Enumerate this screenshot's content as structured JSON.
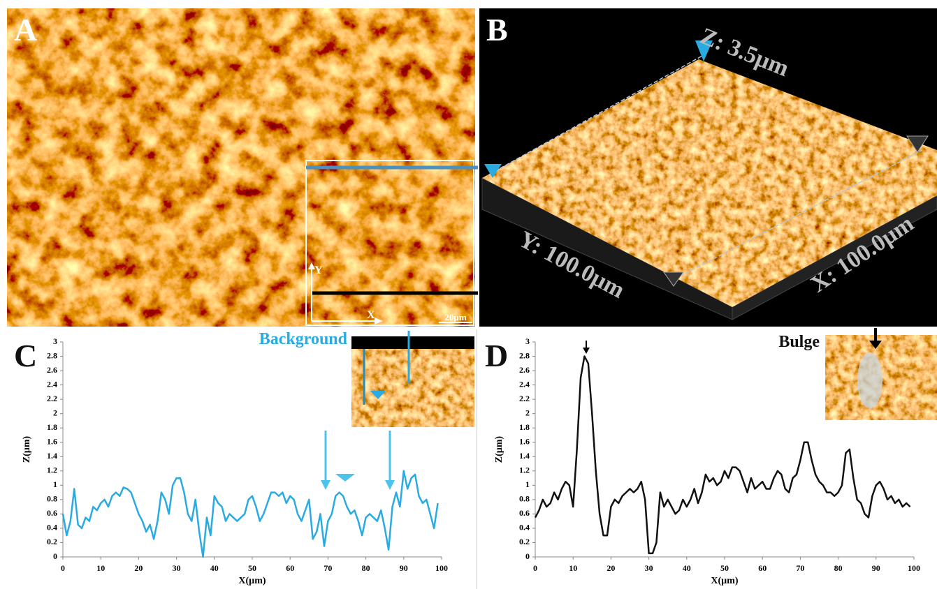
{
  "panels": {
    "a": {
      "label": "A",
      "axis_x": "X",
      "axis_y": "Y",
      "scale_bar": "20µm"
    },
    "b": {
      "label": "B",
      "z_label": "Z: 3.5µm",
      "y_label": "Y: 100.0µm",
      "x_label": "X: 100.0µm"
    }
  },
  "chart_data": [
    {
      "type": "line",
      "panel_label": "C",
      "annotation": "Background",
      "x_label": "X(µm)",
      "y_label": "Z(µm)",
      "color": "#29abe2",
      "x": [
        0,
        1,
        2,
        3,
        4,
        5,
        6,
        7,
        8,
        9,
        10,
        11,
        12,
        13,
        14,
        15,
        16,
        17,
        18,
        19,
        20,
        21,
        22,
        23,
        24,
        25,
        26,
        27,
        28,
        29,
        30,
        31,
        32,
        33,
        34,
        35,
        36,
        37,
        38,
        39,
        40,
        41,
        42,
        43,
        44,
        45,
        46,
        47,
        48,
        49,
        50,
        51,
        52,
        53,
        54,
        55,
        56,
        57,
        58,
        59,
        60,
        61,
        62,
        63,
        64,
        65,
        66,
        67,
        68,
        69,
        70,
        71,
        72,
        73,
        74,
        75,
        76,
        77,
        78,
        79,
        80,
        81,
        82,
        83,
        84,
        85,
        86,
        87,
        88,
        89,
        90,
        91,
        92,
        93,
        94,
        95,
        96,
        97,
        98,
        99
      ],
      "values": [
        0.6,
        0.3,
        0.5,
        0.95,
        0.45,
        0.4,
        0.55,
        0.5,
        0.7,
        0.65,
        0.75,
        0.8,
        0.7,
        0.85,
        0.9,
        0.85,
        0.97,
        0.95,
        0.9,
        0.75,
        0.6,
        0.5,
        0.35,
        0.45,
        0.25,
        0.5,
        0.9,
        0.8,
        0.6,
        1.0,
        1.1,
        1.1,
        0.9,
        0.6,
        0.5,
        0.8,
        0.35,
        0.0,
        0.55,
        0.3,
        0.85,
        0.75,
        0.7,
        0.5,
        0.6,
        0.55,
        0.5,
        0.55,
        0.6,
        0.8,
        0.85,
        0.7,
        0.5,
        0.6,
        0.75,
        0.9,
        0.9,
        0.85,
        0.9,
        0.75,
        0.85,
        0.8,
        0.6,
        0.5,
        0.65,
        0.8,
        0.25,
        0.35,
        0.6,
        0.15,
        0.5,
        0.6,
        0.85,
        0.9,
        0.85,
        0.7,
        0.6,
        0.65,
        0.5,
        0.3,
        0.55,
        0.6,
        0.55,
        0.5,
        0.65,
        0.4,
        0.1,
        0.7,
        0.9,
        0.7,
        1.2,
        0.95,
        1.1,
        1.15,
        0.85,
        0.75,
        0.8,
        0.6,
        0.4,
        0.75
      ],
      "xlim": [
        0,
        100
      ],
      "xticks": [
        0,
        10,
        20,
        30,
        40,
        50,
        60,
        70,
        80,
        90,
        100
      ],
      "ylim": [
        0,
        3
      ],
      "yticks": [
        0,
        0.2,
        0.4,
        0.6,
        0.8,
        1,
        1.2,
        1.4,
        1.6,
        1.8,
        2,
        2.2,
        2.4,
        2.6,
        2.8,
        3
      ]
    },
    {
      "type": "line",
      "panel_label": "D",
      "annotation": "Bulge",
      "x_label": "X(µm)",
      "y_label": "Z(µm)",
      "color": "#111111",
      "x": [
        0,
        1,
        2,
        3,
        4,
        5,
        6,
        7,
        8,
        9,
        10,
        11,
        12,
        13,
        14,
        15,
        16,
        17,
        18,
        19,
        20,
        21,
        22,
        23,
        24,
        25,
        26,
        27,
        28,
        29,
        30,
        31,
        32,
        33,
        34,
        35,
        36,
        37,
        38,
        39,
        40,
        41,
        42,
        43,
        44,
        45,
        46,
        47,
        48,
        49,
        50,
        51,
        52,
        53,
        54,
        55,
        56,
        57,
        58,
        59,
        60,
        61,
        62,
        63,
        64,
        65,
        66,
        67,
        68,
        69,
        70,
        71,
        72,
        73,
        74,
        75,
        76,
        77,
        78,
        79,
        80,
        81,
        82,
        83,
        84,
        85,
        86,
        87,
        88,
        89,
        90,
        91,
        92,
        93,
        94,
        95,
        96,
        97,
        98,
        99
      ],
      "values": [
        0.55,
        0.65,
        0.8,
        0.7,
        0.75,
        0.9,
        0.8,
        0.95,
        1.05,
        1.0,
        0.7,
        1.5,
        2.5,
        2.8,
        2.7,
        2.0,
        1.2,
        0.6,
        0.3,
        0.3,
        0.7,
        0.8,
        0.75,
        0.85,
        0.9,
        0.95,
        0.9,
        0.95,
        1.05,
        0.8,
        0.05,
        0.05,
        0.2,
        0.9,
        0.7,
        0.8,
        0.7,
        0.6,
        0.65,
        0.8,
        0.7,
        0.8,
        0.95,
        0.75,
        0.9,
        1.15,
        1.05,
        1.1,
        1.0,
        1.05,
        1.2,
        1.1,
        1.25,
        1.25,
        1.2,
        1.05,
        0.9,
        1.1,
        0.95,
        1.0,
        1.05,
        0.95,
        0.95,
        1.1,
        1.2,
        1.15,
        0.95,
        0.9,
        1.1,
        1.15,
        1.35,
        1.6,
        1.6,
        1.35,
        1.15,
        1.05,
        1.0,
        0.9,
        0.9,
        0.85,
        0.9,
        1.0,
        1.45,
        1.5,
        1.1,
        0.8,
        0.75,
        0.6,
        0.55,
        0.85,
        1.0,
        1.05,
        0.95,
        0.8,
        0.85,
        0.75,
        0.8,
        0.7,
        0.75,
        0.7
      ],
      "xlim": [
        0,
        100
      ],
      "xticks": [
        0,
        10,
        20,
        30,
        40,
        50,
        60,
        70,
        80,
        90,
        100
      ],
      "ylim": [
        0,
        3
      ],
      "yticks": [
        0,
        0.2,
        0.4,
        0.6,
        0.8,
        1,
        1.2,
        1.4,
        1.6,
        1.8,
        2,
        2.2,
        2.4,
        2.6,
        2.8,
        3
      ]
    }
  ]
}
